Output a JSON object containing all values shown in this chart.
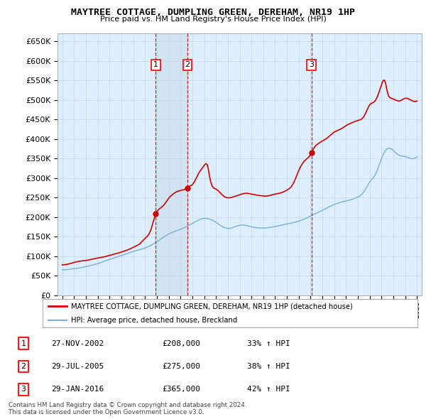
{
  "title": "MAYTREE COTTAGE, DUMPLING GREEN, DEREHAM, NR19 1HP",
  "subtitle": "Price paid vs. HM Land Registry's House Price Index (HPI)",
  "legend_line1": "MAYTREE COTTAGE, DUMPLING GREEN, DEREHAM, NR19 1HP (detached house)",
  "legend_line2": "HPI: Average price, detached house, Breckland",
  "footer": "Contains HM Land Registry data © Crown copyright and database right 2024.\nThis data is licensed under the Open Government Licence v3.0.",
  "sales": [
    {
      "num": 1,
      "date": "27-NOV-2002",
      "price": 208000,
      "pct": "33%",
      "x_year": 2002.9
    },
    {
      "num": 2,
      "date": "29-JUL-2005",
      "price": 275000,
      "pct": "38%",
      "x_year": 2005.58
    },
    {
      "num": 3,
      "date": "29-JAN-2016",
      "price": 365000,
      "pct": "42%",
      "x_year": 2016.08
    }
  ],
  "sale_values": [
    208000,
    275000,
    365000
  ],
  "property_color": "#cc0000",
  "hpi_color": "#7ab0d4",
  "vline_color": "#cc0000",
  "shade_color": "#cce0f0",
  "grid_color": "#c8d8e8",
  "bg_color": "#ddeeff",
  "plot_bg": "#ffffff",
  "ylim": [
    0,
    670000
  ],
  "yticks": [
    0,
    50000,
    100000,
    150000,
    200000,
    250000,
    300000,
    350000,
    400000,
    450000,
    500000,
    550000,
    600000,
    650000
  ],
  "xlim_start": 1994.6,
  "xlim_end": 2025.4
}
